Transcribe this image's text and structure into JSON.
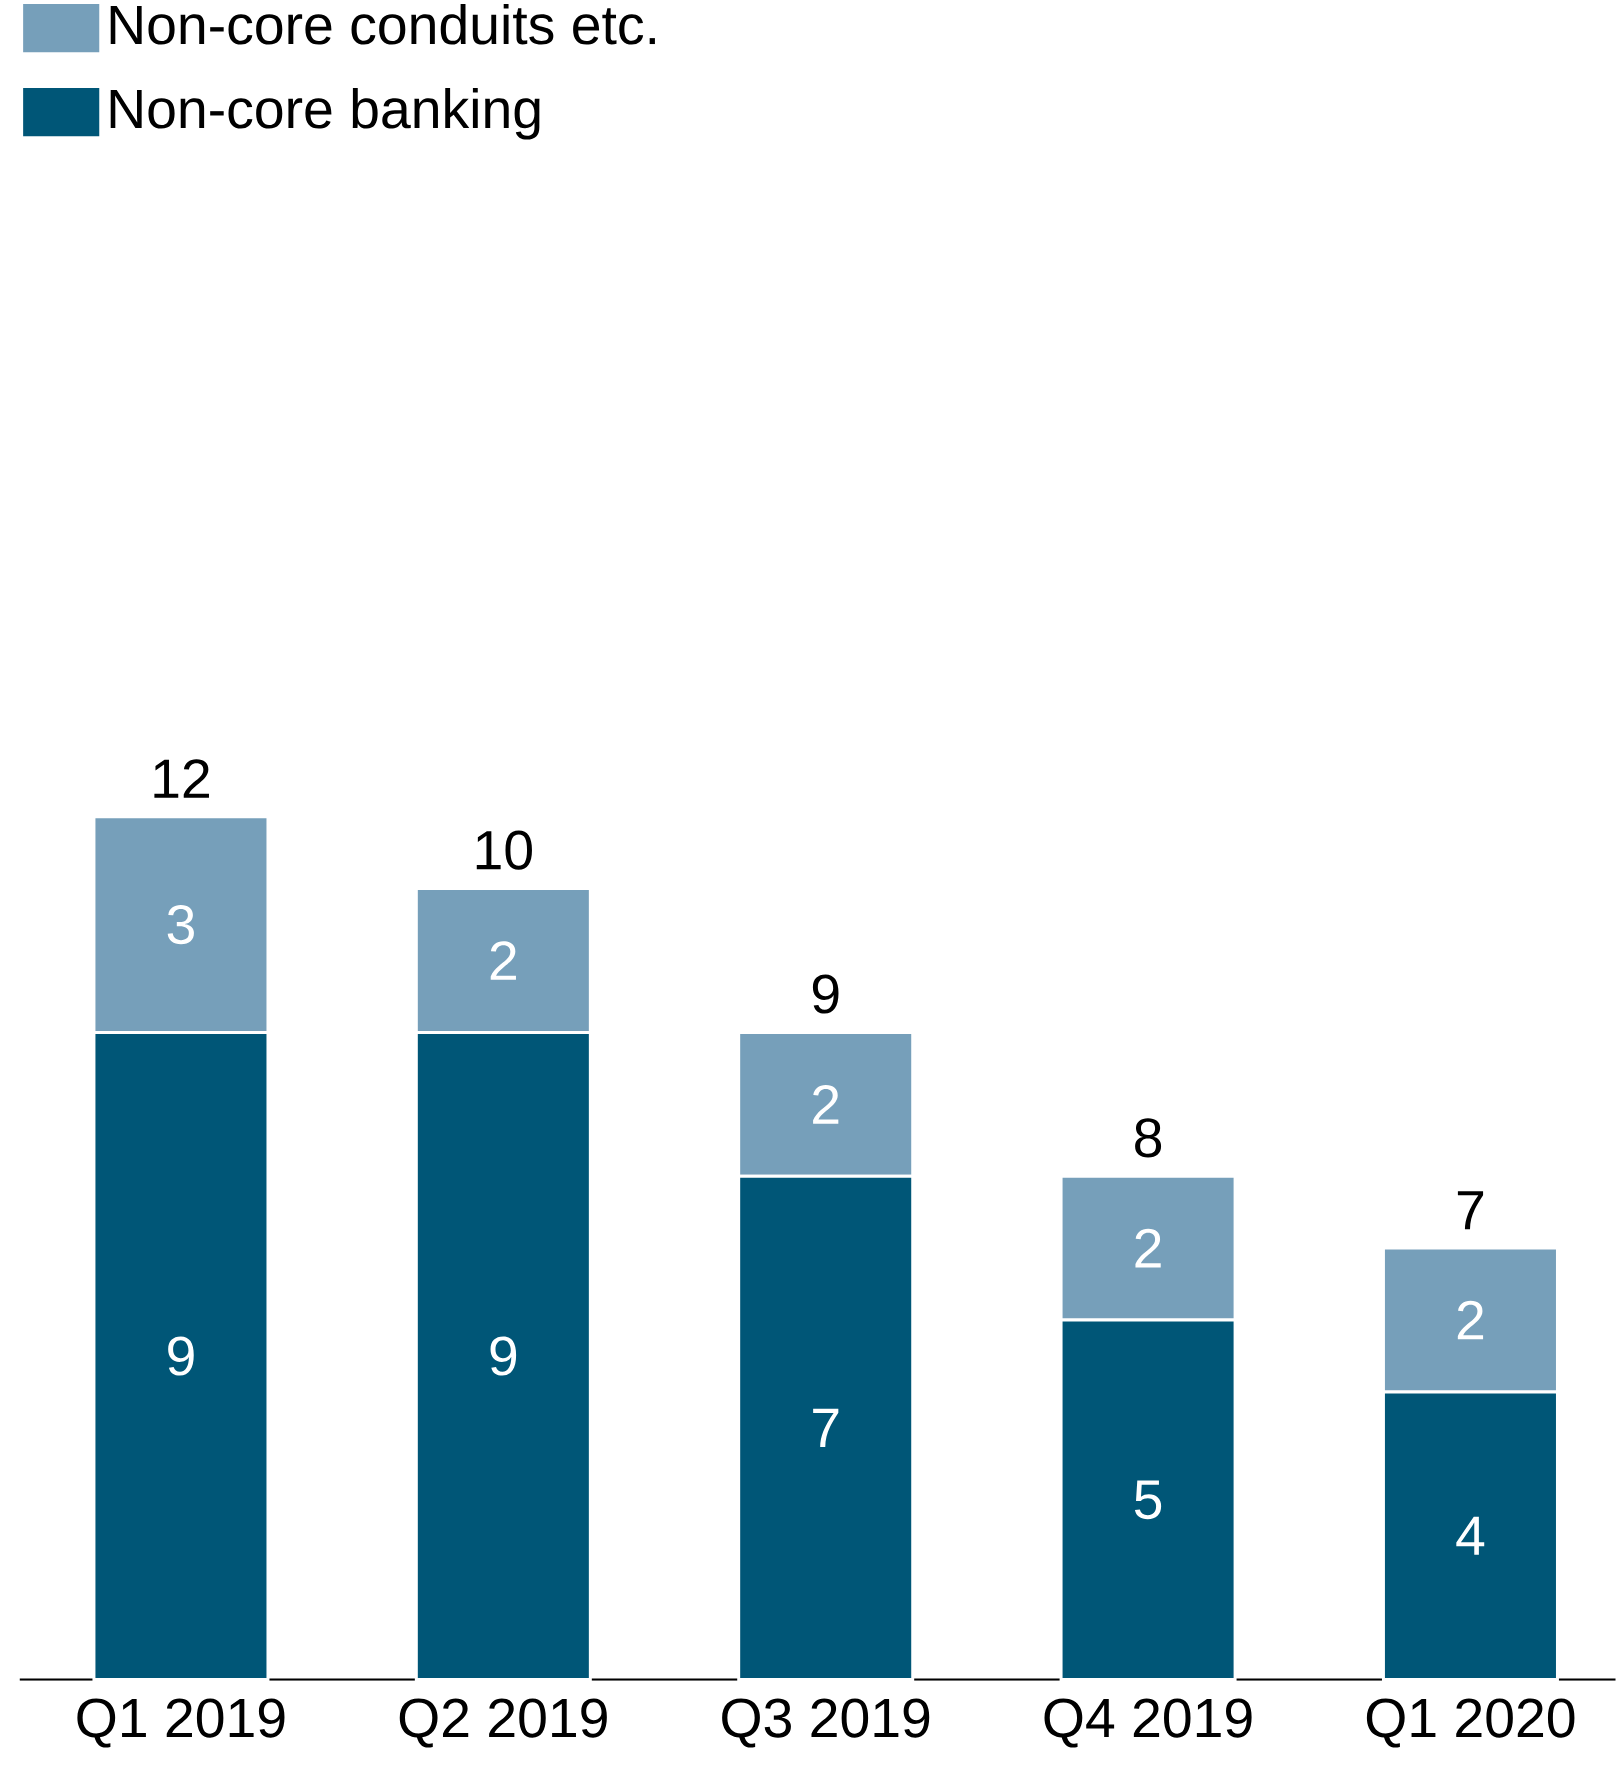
{
  "chart_data": {
    "type": "bar",
    "stacked": true,
    "categories": [
      "Q1 2019",
      "Q2 2019",
      "Q3 2019",
      "Q4 2019",
      "Q1 2020"
    ],
    "series": [
      {
        "name": "Non-core banking",
        "color": "#005677",
        "values": [
          9,
          9,
          7,
          5,
          4
        ]
      },
      {
        "name": "Non-core conduits etc.",
        "color": "#769fba",
        "values": [
          3,
          2,
          2,
          2,
          2
        ]
      }
    ],
    "data_labels": true,
    "totals": [
      "12",
      "10",
      "9",
      "8",
      "7"
    ],
    "legend": "top left"
  }
}
